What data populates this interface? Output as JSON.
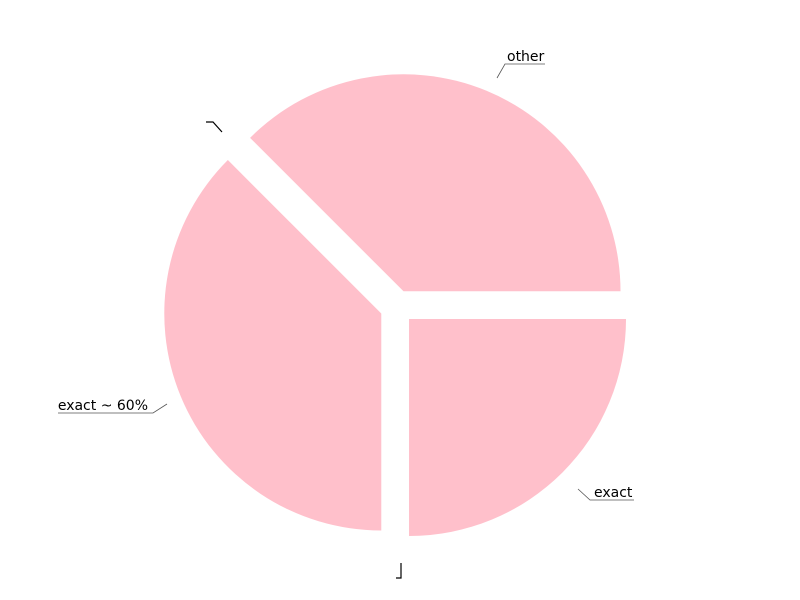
{
  "chart_data": {
    "type": "pie",
    "title": "",
    "slices": [
      {
        "label": "other",
        "value": 37.5,
        "color": "#ffc0cb"
      },
      {
        "label": "exact",
        "value": 25.0,
        "color": "#ffc0cb"
      },
      {
        "label": "exact ~ 60%",
        "value": 37.5,
        "color": "#ffc0cb"
      }
    ],
    "exploded": true,
    "legend": "none"
  }
}
